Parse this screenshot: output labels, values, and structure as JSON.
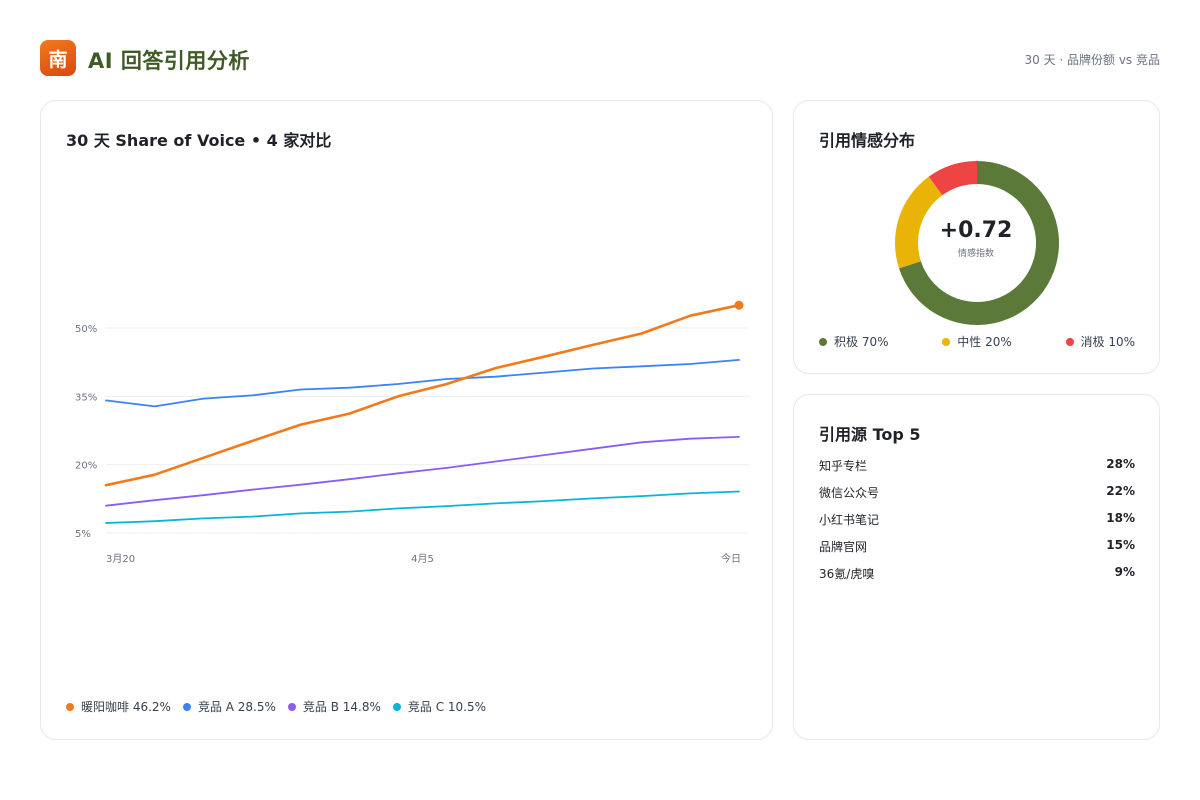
{
  "header": {
    "logo_text": "南",
    "title": "AI 回答引用分析",
    "subtitle": "30 天 · 品牌份额 vs 竞品"
  },
  "sov": {
    "title": "30 天 Share of Voice • 4 家对比",
    "legend": [
      {
        "label": "暖阳咖啡 46.2%",
        "color": "#f27a1c"
      },
      {
        "label": "竞品 A 28.5%",
        "color": "#3b82f6"
      },
      {
        "label": "竞品 B 14.8%",
        "color": "#8b5cf6"
      },
      {
        "label": "竞品 C 10.5%",
        "color": "#06b6d4"
      }
    ]
  },
  "sentiment": {
    "title": "引用情感分布",
    "center_value": "+0.72",
    "center_label": "情感指数",
    "legend": [
      {
        "label": "积极 70%",
        "color": "#5b7a3a"
      },
      {
        "label": "中性 20%",
        "color": "#eab308"
      },
      {
        "label": "消极 10%",
        "color": "#ef4444"
      }
    ]
  },
  "sources": {
    "title": "引用源 Top 5",
    "items": [
      {
        "name": "知乎专栏",
        "value": "28%"
      },
      {
        "name": "微信公众号",
        "value": "22%"
      },
      {
        "name": "小红书笔记",
        "value": "18%"
      },
      {
        "name": "品牌官网",
        "value": "15%"
      },
      {
        "name": "36氪/虎嗅",
        "value": "9%"
      }
    ]
  },
  "chart_data": [
    {
      "type": "line",
      "title": "30 天 Share of Voice • 4 家对比",
      "y_ticks": [
        5,
        20,
        35,
        50
      ],
      "y_tick_labels": [
        "5%",
        "20%",
        "35%",
        "50%"
      ],
      "ylim": [
        5,
        50
      ],
      "x_tick_labels": [
        "3月20",
        "4月5",
        "今日"
      ],
      "x": [
        0,
        1,
        2,
        3,
        4,
        5,
        6,
        7,
        8,
        9,
        10,
        11,
        12,
        13
      ],
      "grid": true,
      "series": [
        {
          "name": "暖阳咖啡",
          "color": "#f27a1c",
          "values": [
            15.5,
            17.8,
            21.5,
            25.2,
            28.8,
            31.2,
            35.0,
            37.7,
            41.2,
            43.7,
            46.3,
            48.8,
            52.7,
            55.0
          ],
          "end_marker": true
        },
        {
          "name": "竞品 A",
          "color": "#3b82f6",
          "values": [
            34.1,
            32.8,
            34.5,
            35.2,
            36.5,
            36.9,
            37.7,
            38.8,
            39.3,
            40.2,
            41.1,
            41.6,
            42.1,
            43.0
          ]
        },
        {
          "name": "竞品 B",
          "color": "#8b5cf6",
          "values": [
            11.0,
            12.2,
            13.3,
            14.5,
            15.6,
            16.8,
            18.1,
            19.3,
            20.7,
            22.1,
            23.5,
            24.9,
            25.7,
            26.1
          ]
        },
        {
          "name": "竞品 C",
          "color": "#06b6d4",
          "values": [
            7.2,
            7.6,
            8.2,
            8.6,
            9.3,
            9.7,
            10.4,
            10.9,
            11.5,
            12.0,
            12.6,
            13.1,
            13.7,
            14.1
          ]
        }
      ]
    },
    {
      "type": "pie",
      "title": "引用情感分布",
      "categories": [
        "积极",
        "中性",
        "消极"
      ],
      "values": [
        70,
        20,
        10
      ],
      "colors": [
        "#5b7a3a",
        "#eab308",
        "#ef4444"
      ]
    }
  ]
}
